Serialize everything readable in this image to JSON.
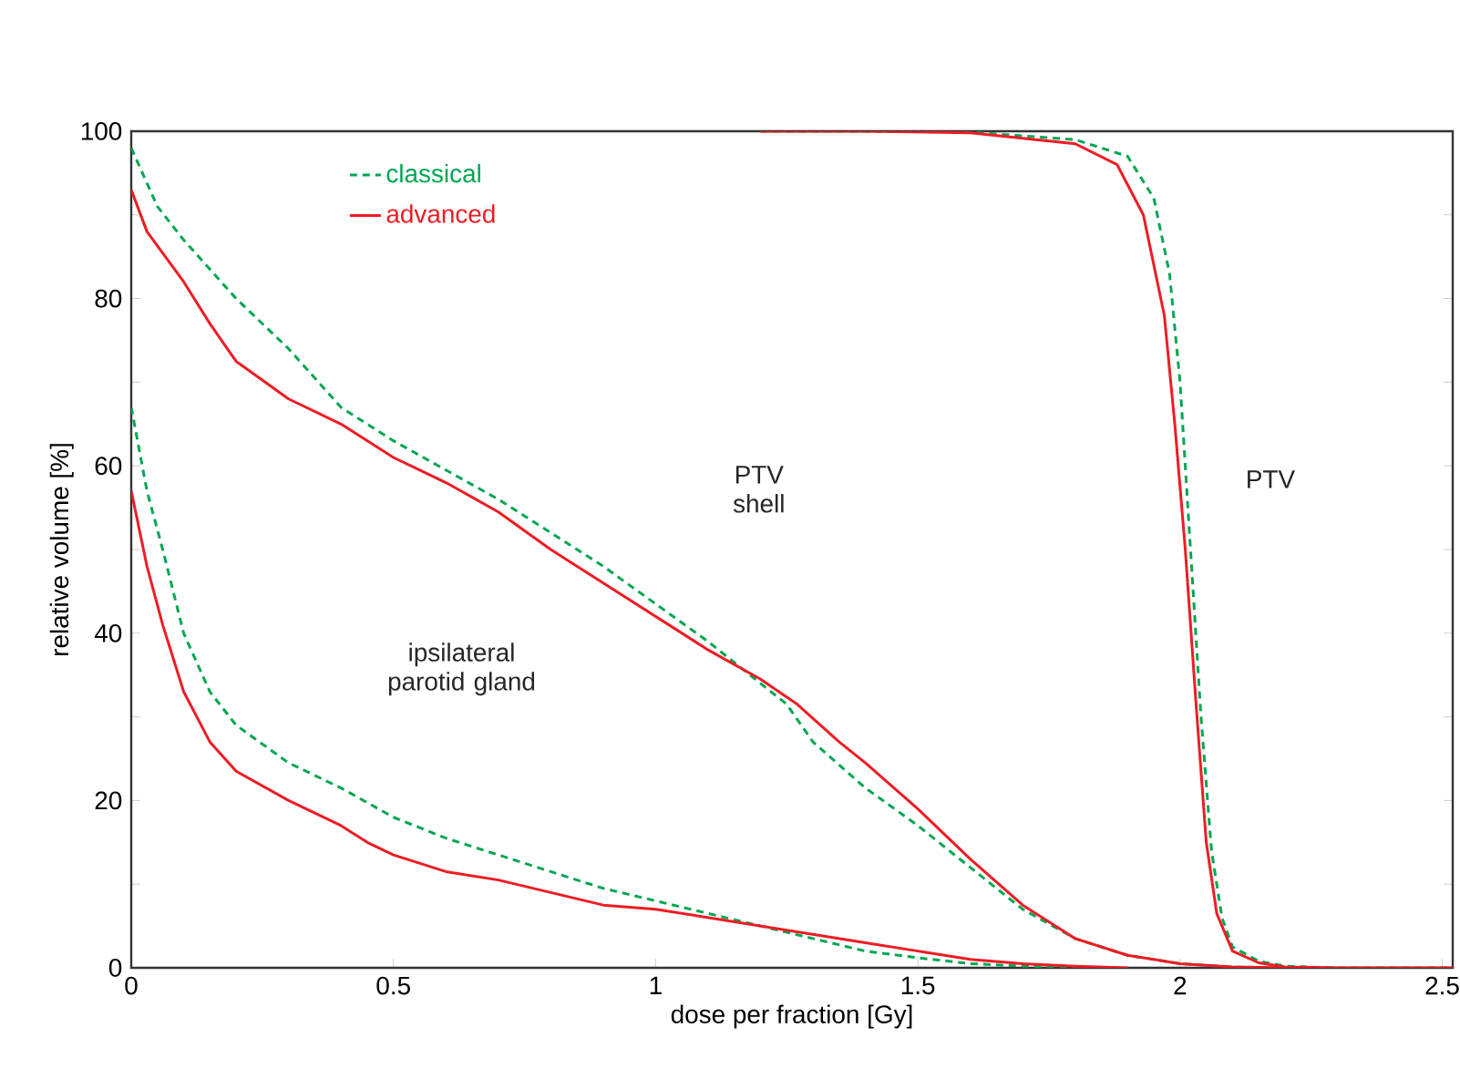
{
  "chart_data": {
    "type": "line",
    "xlabel": "dose per fraction [Gy]",
    "ylabel": "relative volume [%]",
    "xlim": [
      0,
      2.52
    ],
    "ylim": [
      0,
      100
    ],
    "xticks": [
      0,
      0.5,
      1,
      1.5,
      2,
      2.5
    ],
    "yticks": [
      0,
      20,
      40,
      60,
      80,
      100
    ],
    "legend": "top left",
    "series": [
      {
        "name": "classical",
        "color": "#00a651",
        "line_style": "dashed",
        "x": [
          0,
          0.05,
          0.1,
          0.2,
          0.3,
          0.4,
          0.5,
          0.6,
          0.7,
          0.8,
          0.9,
          1.0,
          1.1,
          1.2,
          1.25,
          1.3,
          1.4,
          1.5,
          1.6,
          1.7,
          1.8,
          1.9,
          2.0,
          2.1,
          2.2
        ],
        "values": [
          98,
          91,
          87,
          80,
          74,
          67,
          63,
          59.5,
          56,
          52,
          48,
          43.5,
          39,
          34,
          31.5,
          27,
          21.5,
          17,
          12,
          7,
          3.5,
          1.5,
          0.5,
          0.1,
          0
        ]
      },
      {
        "name": "advanced",
        "color": "#ed1c24",
        "line_style": "solid",
        "x": [
          0,
          0.03,
          0.1,
          0.15,
          0.2,
          0.3,
          0.4,
          0.5,
          0.6,
          0.7,
          0.8,
          0.9,
          1.0,
          1.1,
          1.2,
          1.27,
          1.35,
          1.4,
          1.5,
          1.6,
          1.7,
          1.8,
          1.9,
          2.0,
          2.1,
          2.2
        ],
        "values": [
          93,
          88,
          82,
          77,
          72.5,
          68,
          65,
          61,
          58,
          54.5,
          50,
          46,
          42,
          38,
          34.5,
          31.5,
          27,
          24.5,
          19,
          13,
          7.5,
          3.5,
          1.5,
          0.5,
          0.1,
          0
        ]
      },
      {
        "color": "#00a651",
        "line_style": "dashed",
        "x": [
          0,
          0.03,
          0.06,
          0.1,
          0.15,
          0.2,
          0.3,
          0.4,
          0.5,
          0.6,
          0.7,
          0.8,
          0.9,
          1.0,
          1.1,
          1.2,
          1.3,
          1.4,
          1.5,
          1.6,
          1.7,
          1.8
        ],
        "values": [
          67,
          57,
          50,
          40,
          33,
          29,
          24.5,
          21.5,
          18,
          15.5,
          13.5,
          11.5,
          9.5,
          8,
          6.5,
          5,
          3.5,
          2,
          1.2,
          0.5,
          0.2,
          0
        ]
      },
      {
        "color": "#ed1c24",
        "line_style": "solid",
        "x": [
          0,
          0.03,
          0.06,
          0.1,
          0.15,
          0.2,
          0.3,
          0.4,
          0.45,
          0.5,
          0.6,
          0.7,
          0.8,
          0.9,
          1.0,
          1.1,
          1.2,
          1.3,
          1.4,
          1.5,
          1.6,
          1.7,
          1.8,
          1.9
        ],
        "values": [
          57,
          48,
          41,
          33,
          27,
          23.5,
          20,
          17,
          15,
          13.5,
          11.5,
          10.5,
          9,
          7.5,
          7,
          6,
          5,
          4,
          3,
          2,
          1,
          0.5,
          0.2,
          0
        ]
      },
      {
        "color": "#00a651",
        "line_style": "dashed",
        "x": [
          1.2,
          1.4,
          1.6,
          1.8,
          1.9,
          1.95,
          1.98,
          2.0,
          2.02,
          2.04,
          2.06,
          2.08,
          2.1,
          2.15,
          2.2,
          2.3,
          2.52
        ],
        "values": [
          100,
          100,
          99.9,
          99,
          97,
          92,
          83,
          70,
          50,
          30,
          14,
          6,
          2.5,
          0.8,
          0.2,
          0,
          0
        ]
      },
      {
        "color": "#ed1c24",
        "line_style": "solid",
        "x": [
          1.2,
          1.4,
          1.6,
          1.8,
          1.88,
          1.93,
          1.97,
          1.99,
          2.01,
          2.03,
          2.05,
          2.07,
          2.1,
          2.15,
          2.2,
          2.3,
          2.52
        ],
        "values": [
          100,
          100,
          99.8,
          98.5,
          96,
          90,
          78,
          65,
          50,
          32,
          15,
          6.5,
          2,
          0.6,
          0.1,
          0,
          0
        ]
      }
    ],
    "annotations": [
      "PTV shell",
      "PTV",
      "ipsilateral parotid gland"
    ]
  }
}
